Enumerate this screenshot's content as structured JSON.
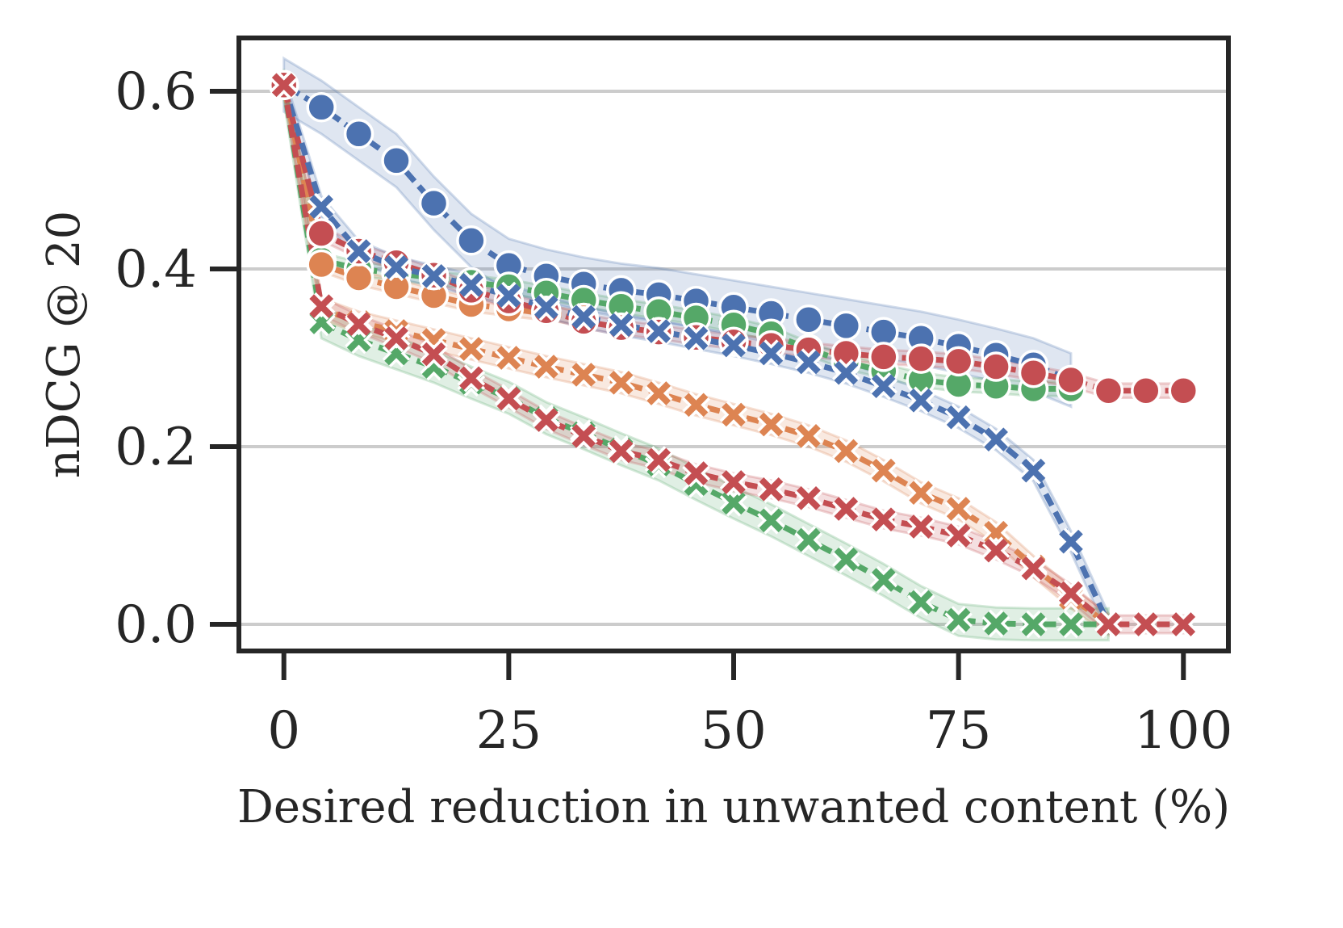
{
  "chart_data": {
    "type": "line",
    "title": "",
    "xlabel": "Desired reduction in unwanted content (%)",
    "ylabel": "nDCG @ 20",
    "xlim": [
      -5,
      105
    ],
    "ylim": [
      -0.03,
      0.66
    ],
    "xticks": [
      0,
      25,
      50,
      75,
      100
    ],
    "xtick_labels": [
      "0",
      "25",
      "50",
      "75",
      "100"
    ],
    "yticks": [
      0.0,
      0.2,
      0.4,
      0.6
    ],
    "ytick_labels": [
      "0.0",
      "0.2",
      "0.4",
      "0.6"
    ],
    "grid": "horizontal",
    "colors": {
      "blue": "#4c72b0",
      "orange": "#dd8452",
      "green": "#55a868",
      "red": "#c44e52",
      "axis": "#262626",
      "grid": "#cccccc"
    },
    "series": [
      {
        "name": "blue-circle",
        "color": "#4c72b0",
        "marker": "circle",
        "band": 0.03,
        "x": [
          0,
          4.17,
          8.33,
          12.5,
          16.67,
          20.83,
          25,
          29.17,
          33.33,
          37.5,
          41.67,
          45.83,
          50,
          54.17,
          58.33,
          62.5,
          66.67,
          70.83,
          75,
          79.17,
          83.33,
          87.5
        ],
        "y": [
          0.607,
          0.582,
          0.552,
          0.522,
          0.474,
          0.432,
          0.404,
          0.392,
          0.383,
          0.376,
          0.371,
          0.364,
          0.357,
          0.35,
          0.343,
          0.336,
          0.329,
          0.322,
          0.313,
          0.303,
          0.292,
          0.275
        ]
      },
      {
        "name": "green-circle",
        "color": "#55a868",
        "marker": "circle",
        "band": 0.008,
        "x": [
          0,
          4.17,
          8.33,
          12.5,
          16.67,
          20.83,
          25,
          29.17,
          33.33,
          37.5,
          41.67,
          45.83,
          50,
          54.17,
          58.33,
          62.5,
          66.67,
          70.83,
          75,
          79.17,
          83.33,
          87.5
        ],
        "y": [
          0.607,
          0.41,
          0.4,
          0.395,
          0.39,
          0.385,
          0.38,
          0.373,
          0.365,
          0.358,
          0.352,
          0.345,
          0.337,
          0.327,
          0.31,
          0.295,
          0.285,
          0.275,
          0.27,
          0.268,
          0.265,
          0.265
        ]
      },
      {
        "name": "orange-circle",
        "color": "#dd8452",
        "marker": "circle",
        "band": 0.008,
        "x": [
          0,
          4.17,
          8.33,
          12.5,
          16.67,
          20.83,
          25,
          29.17,
          33.33
        ],
        "y": [
          0.607,
          0.405,
          0.39,
          0.38,
          0.37,
          0.36,
          0.355,
          0.35,
          0.345
        ]
      },
      {
        "name": "red-circle",
        "color": "#c44e52",
        "marker": "circle",
        "band": 0.008,
        "x": [
          0,
          4.17,
          8.33,
          12.5,
          16.67,
          20.83,
          25,
          29.17,
          33.33,
          37.5,
          41.67,
          45.83,
          50,
          54.17,
          58.33,
          62.5,
          66.67,
          70.83,
          75,
          79.17,
          83.33,
          87.5,
          91.67,
          95.83,
          100
        ],
        "y": [
          0.607,
          0.44,
          0.42,
          0.407,
          0.393,
          0.376,
          0.364,
          0.353,
          0.341,
          0.334,
          0.329,
          0.323,
          0.318,
          0.314,
          0.309,
          0.305,
          0.301,
          0.299,
          0.296,
          0.29,
          0.283,
          0.275,
          0.263,
          0.263,
          0.263
        ]
      },
      {
        "name": "blue-cross",
        "color": "#4c72b0",
        "marker": "cross",
        "band": 0.012,
        "x": [
          0,
          4.17,
          8.33,
          12.5,
          16.67,
          20.83,
          25,
          29.17,
          33.33,
          37.5,
          41.67,
          45.83,
          50,
          54.17,
          58.33,
          62.5,
          66.67,
          70.83,
          75,
          79.17,
          83.33,
          87.5,
          91.67
        ],
        "y": [
          0.607,
          0.47,
          0.42,
          0.402,
          0.392,
          0.382,
          0.37,
          0.357,
          0.346,
          0.337,
          0.33,
          0.322,
          0.314,
          0.305,
          0.295,
          0.283,
          0.268,
          0.252,
          0.233,
          0.208,
          0.173,
          0.093,
          0.0
        ]
      },
      {
        "name": "orange-cross",
        "color": "#dd8452",
        "marker": "cross",
        "band": 0.012,
        "x": [
          0,
          4.17,
          8.33,
          12.5,
          16.67,
          20.83,
          25,
          29.17,
          33.33,
          37.5,
          41.67,
          45.83,
          50,
          54.17,
          58.33,
          62.5,
          66.67,
          70.83,
          75,
          79.17,
          83.33,
          87.5,
          91.67
        ],
        "y": [
          0.607,
          0.355,
          0.34,
          0.33,
          0.32,
          0.31,
          0.3,
          0.29,
          0.281,
          0.272,
          0.26,
          0.247,
          0.236,
          0.225,
          0.212,
          0.195,
          0.173,
          0.148,
          0.13,
          0.103,
          0.065,
          0.03,
          0.0
        ]
      },
      {
        "name": "green-cross",
        "color": "#55a868",
        "marker": "cross",
        "band": 0.018,
        "x": [
          0,
          4.17,
          8.33,
          12.5,
          16.67,
          20.83,
          25,
          29.17,
          33.33,
          37.5,
          41.67,
          45.83,
          50,
          54.17,
          58.33,
          62.5,
          66.67,
          70.83,
          75,
          79.17,
          83.33,
          87.5,
          91.67
        ],
        "y": [
          0.607,
          0.34,
          0.32,
          0.305,
          0.29,
          0.272,
          0.255,
          0.232,
          0.215,
          0.197,
          0.18,
          0.158,
          0.137,
          0.117,
          0.095,
          0.073,
          0.05,
          0.025,
          0.005,
          0.001,
          0.0,
          0.0,
          0.0
        ]
      },
      {
        "name": "red-cross",
        "color": "#c44e52",
        "marker": "cross",
        "band": 0.01,
        "x": [
          0,
          4.17,
          8.33,
          12.5,
          16.67,
          20.83,
          25,
          29.17,
          33.33,
          37.5,
          41.67,
          45.83,
          50,
          54.17,
          58.33,
          62.5,
          66.67,
          70.83,
          75,
          79.17,
          83.33,
          87.5,
          91.67,
          95.83,
          100
        ],
        "y": [
          0.607,
          0.358,
          0.338,
          0.322,
          0.304,
          0.277,
          0.254,
          0.23,
          0.212,
          0.195,
          0.185,
          0.17,
          0.16,
          0.152,
          0.142,
          0.13,
          0.118,
          0.11,
          0.1,
          0.083,
          0.063,
          0.035,
          0.0,
          0.0,
          0.0
        ]
      }
    ]
  }
}
